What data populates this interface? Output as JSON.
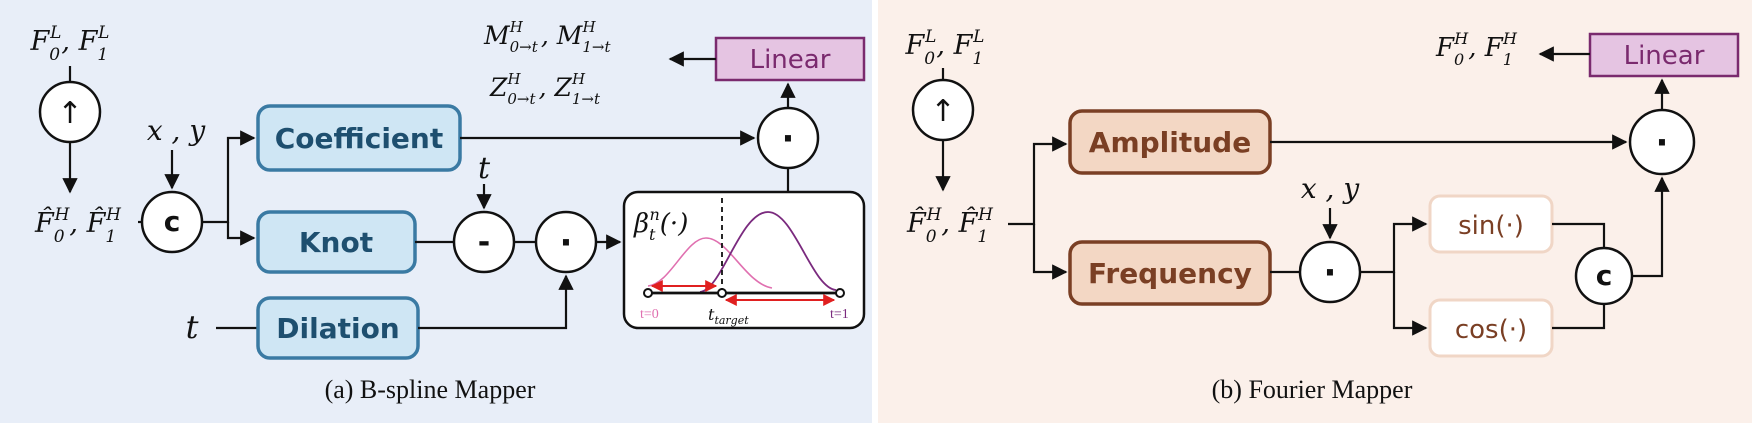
{
  "colors": {
    "panel_a_bg": "#e8eef8",
    "panel_b_bg": "#fbf0ea",
    "blue_box_fill": "#cfe6f4",
    "blue_box_stroke": "#3a7aa3",
    "blue_box_text": "#1e4f6f",
    "brown_box_fill": "#f3d7c4",
    "brown_box_stroke": "#7a3f24",
    "brown_box_text": "#7a3f24",
    "trig_box_stroke": "#f0d6c6",
    "trig_text": "#7a3f24",
    "linear_fill": "#e5c4e2",
    "linear_stroke": "#7a2a6e",
    "curve_pink": "#e070b0",
    "curve_purple": "#7a2a7e",
    "arrow_red": "#e02020"
  },
  "panel_a": {
    "caption": "(a) B-spline Mapper",
    "inputs_label": "F_0^L , F_1^L",
    "upsample_symbol": "↑",
    "upsampled_label": "F̂_0^H , F̂_1^H",
    "xy_label": "x , y",
    "concat_symbol": "c",
    "coefficient_label": "Coefficient",
    "knot_label": "Knot",
    "dilation_label": "Dilation",
    "t_label": "t",
    "minus_symbol": "-",
    "dot_symbol": "·",
    "linear_label": "Linear",
    "output_line1": "M_{0→t}^H , M_{1→t}^H",
    "output_line2": "Z_{0→t}^H , Z_{1→t}^H",
    "basis_label": "β_t^n(·)",
    "basis_t0": "t=0",
    "basis_ttarget": "t_target",
    "basis_t1": "t=1"
  },
  "panel_b": {
    "caption": "(b) Fourier Mapper",
    "inputs_label": "F_0^L , F_1^L",
    "upsample_symbol": "↑",
    "upsampled_label": "F̂_0^H , F̂_1^H",
    "amplitude_label": "Amplitude",
    "frequency_label": "Frequency",
    "xy_label": "x , y",
    "dot_symbol": "·",
    "sin_label": "sin(·)",
    "cos_label": "cos(·)",
    "concat_symbol": "c",
    "linear_label": "Linear",
    "output_label": "F_0^H , F_1^H"
  }
}
